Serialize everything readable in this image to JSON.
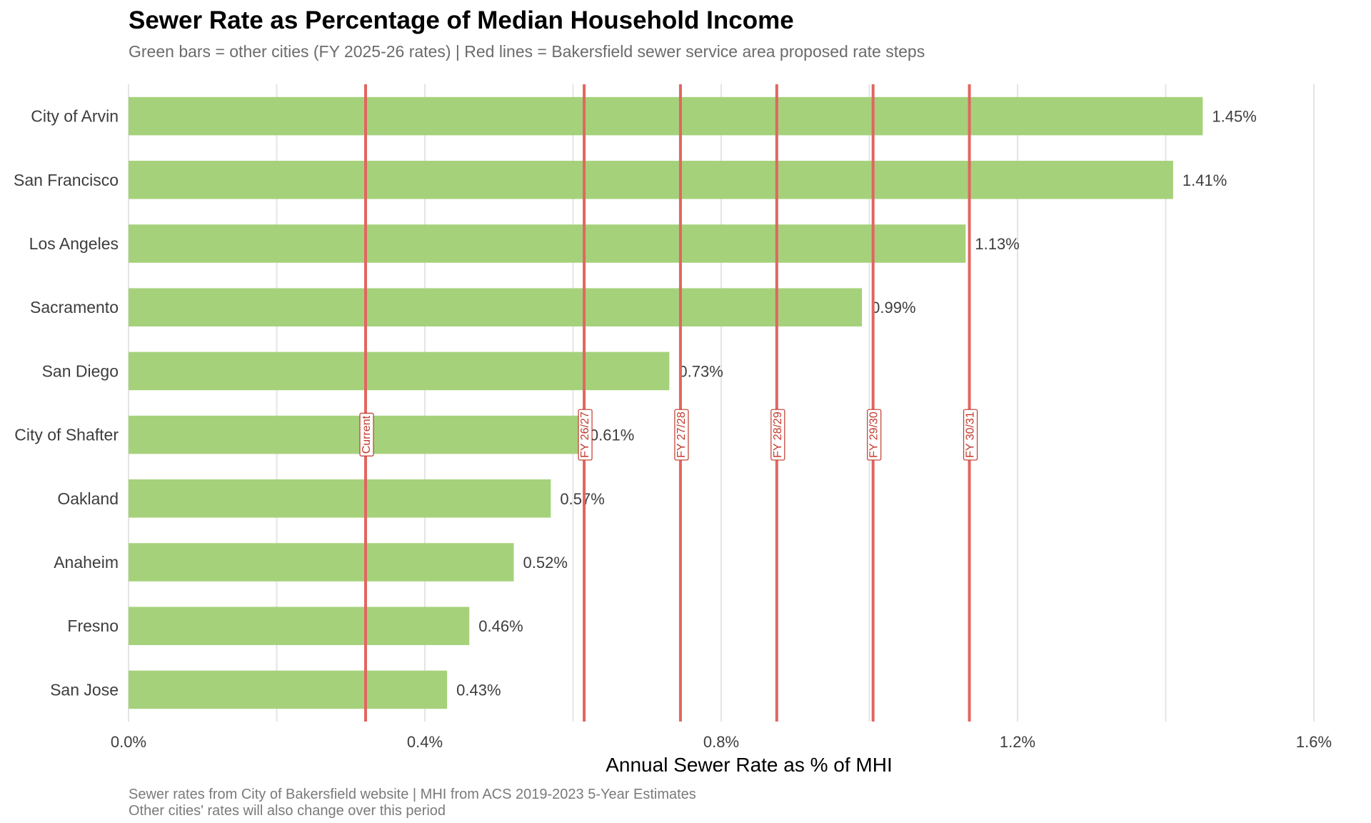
{
  "chart_data": {
    "type": "bar",
    "orientation": "horizontal",
    "title": "Sewer Rate as Percentage of Median Household Income",
    "subtitle": "Green bars = other cities (FY 2025-26 rates) | Red lines = Bakersfield sewer service area proposed rate steps",
    "xlabel": "Annual Sewer Rate as % of MHI",
    "ylabel": "",
    "xlim": [
      0,
      1.6
    ],
    "x_ticks": [
      0,
      0.4,
      0.8,
      1.2,
      1.6
    ],
    "x_tick_labels": [
      "0.0%",
      "0.4%",
      "0.8%",
      "1.2%",
      "1.6%"
    ],
    "grid": true,
    "categories": [
      "City of Arvin",
      "San Francisco",
      "Los Angeles",
      "Sacramento",
      "San Diego",
      "City of Shafter",
      "Oakland",
      "Anaheim",
      "Fresno",
      "San Jose"
    ],
    "values": [
      1.45,
      1.41,
      1.13,
      0.99,
      0.73,
      0.61,
      0.57,
      0.52,
      0.46,
      0.43
    ],
    "value_labels": [
      "1.45%",
      "1.41%",
      "1.13%",
      "0.99%",
      "0.73%",
      "0.61%",
      "0.57%",
      "0.52%",
      "0.46%",
      "0.43%"
    ],
    "bar_color": "#a6d17b",
    "reference_lines": [
      {
        "label": "Current",
        "value": 0.32
      },
      {
        "label": "FY 26/27",
        "value": 0.615
      },
      {
        "label": "FY 27/28",
        "value": 0.745
      },
      {
        "label": "FY 28/29",
        "value": 0.875
      },
      {
        "label": "FY 29/30",
        "value": 1.005
      },
      {
        "label": "FY 30/31",
        "value": 1.135
      }
    ],
    "reference_line_color": "#e06660",
    "reference_label_color": "#c0392b",
    "caption": [
      "Sewer rates from City of Bakersfield website | MHI from ACS 2019-2023 5-Year Estimates",
      "Other cities' rates will also change over this period"
    ]
  }
}
